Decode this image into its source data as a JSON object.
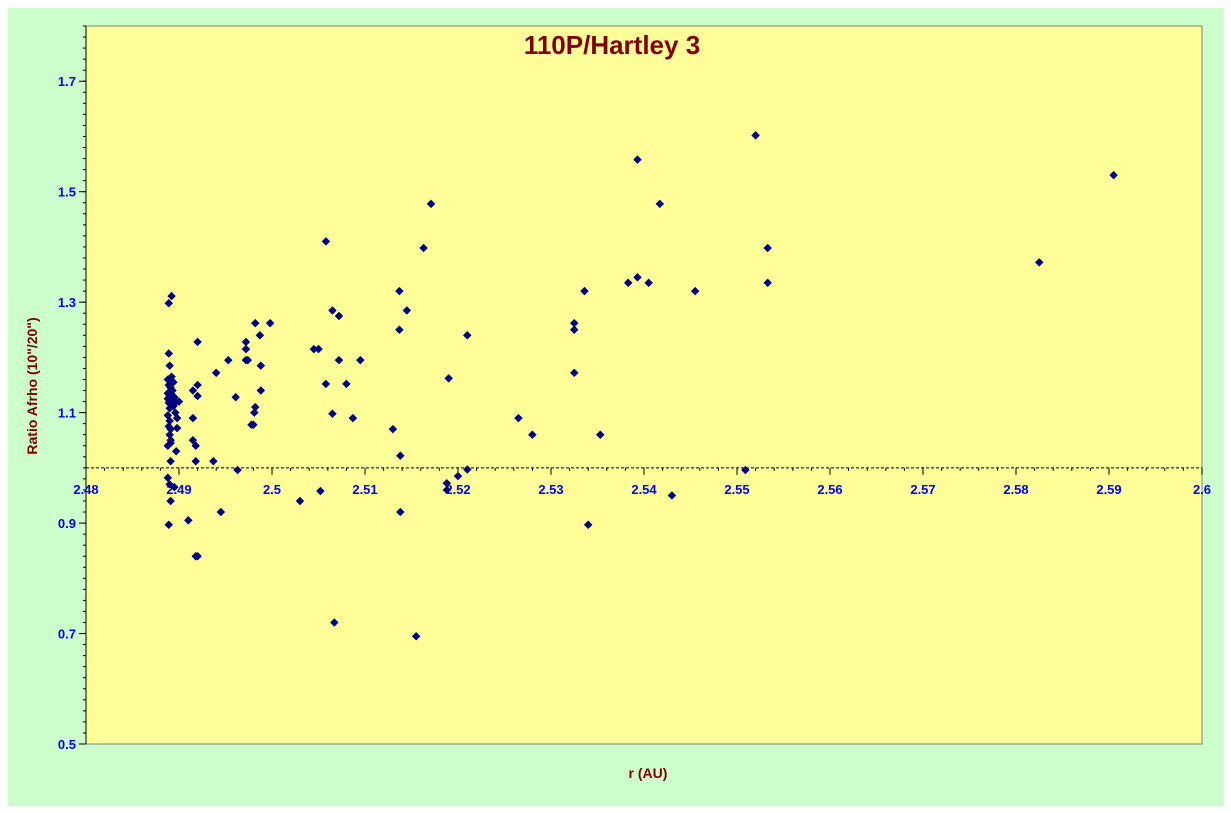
{
  "colors": {
    "outer_background": "#ccffcc",
    "plot_background": "#ffff99",
    "marker": "#000080",
    "title": "#800000",
    "tick_labels": "#0000ff"
  },
  "chart_data": {
    "type": "scatter",
    "title": "110P/Hartley 3",
    "xlabel": "r (AU)",
    "ylabel": "Ratio Afrho (10\"/20\")",
    "xlim": [
      2.48,
      2.6
    ],
    "ylim": [
      0.5,
      1.8
    ],
    "x_axis_crosses_y_at": 1.0,
    "x_ticks": [
      "2.48",
      "2.49",
      "2.5",
      "2.51",
      "2.52",
      "2.53",
      "2.54",
      "2.55",
      "2.56",
      "2.57",
      "2.58",
      "2.59",
      "2.6"
    ],
    "y_ticks": [
      "0.5",
      "0.7",
      "0.9",
      "1.1",
      "1.3",
      "1.5",
      "1.7"
    ],
    "grid": false,
    "legend": "none",
    "marker": "diamond",
    "points": [
      [
        2.4889,
        1.207
      ],
      [
        2.4889,
        1.298
      ],
      [
        2.4892,
        1.311
      ],
      [
        2.489,
        1.185
      ],
      [
        2.4888,
        1.16
      ],
      [
        2.4892,
        1.165
      ],
      [
        2.4894,
        1.155
      ],
      [
        2.4889,
        1.15
      ],
      [
        2.4891,
        1.145
      ],
      [
        2.4893,
        1.14
      ],
      [
        2.4888,
        1.135
      ],
      [
        2.489,
        1.13
      ],
      [
        2.4895,
        1.128
      ],
      [
        2.4888,
        1.125
      ],
      [
        2.4892,
        1.122
      ],
      [
        2.4897,
        1.12
      ],
      [
        2.4889,
        1.118
      ],
      [
        2.4892,
        1.115
      ],
      [
        2.4894,
        1.112
      ],
      [
        2.489,
        1.108
      ],
      [
        2.4896,
        1.1
      ],
      [
        2.4888,
        1.095
      ],
      [
        2.4898,
        1.09
      ],
      [
        2.489,
        1.085
      ],
      [
        2.4889,
        1.075
      ],
      [
        2.4891,
        1.07
      ],
      [
        2.489,
        1.06
      ],
      [
        2.4891,
        1.05
      ],
      [
        2.4888,
        1.04
      ],
      [
        2.4891,
        1.045
      ],
      [
        2.4897,
        1.03
      ],
      [
        2.4891,
        1.012
      ],
      [
        2.4888,
        0.982
      ],
      [
        2.489,
        0.97
      ],
      [
        2.4895,
        0.965
      ],
      [
        2.4891,
        0.94
      ],
      [
        2.4889,
        0.897
      ],
      [
        2.4898,
        1.072
      ],
      [
        2.49,
        1.12
      ],
      [
        2.491,
        0.905
      ],
      [
        2.4915,
        1.09
      ],
      [
        2.4915,
        1.14
      ],
      [
        2.4915,
        1.05
      ],
      [
        2.4918,
        1.012
      ],
      [
        2.492,
        1.15
      ],
      [
        2.492,
        1.13
      ],
      [
        2.492,
        1.228
      ],
      [
        2.4918,
        1.04
      ],
      [
        2.4918,
        0.84
      ],
      [
        2.492,
        0.84
      ],
      [
        2.4937,
        1.012
      ],
      [
        2.494,
        1.172
      ],
      [
        2.4945,
        0.92
      ],
      [
        2.4953,
        1.195
      ],
      [
        2.4961,
        1.128
      ],
      [
        2.4963,
        0.996
      ],
      [
        2.4972,
        1.228
      ],
      [
        2.4972,
        1.215
      ],
      [
        2.4972,
        1.195
      ],
      [
        2.4974,
        1.195
      ],
      [
        2.4978,
        1.078
      ],
      [
        2.498,
        1.078
      ],
      [
        2.4981,
        1.1
      ],
      [
        2.4982,
        1.11
      ],
      [
        2.4982,
        1.262
      ],
      [
        2.4987,
        1.24
      ],
      [
        2.4988,
        1.185
      ],
      [
        2.4988,
        1.14
      ],
      [
        2.4998,
        1.262
      ],
      [
        2.503,
        0.94
      ],
      [
        2.5045,
        1.215
      ],
      [
        2.505,
        1.215
      ],
      [
        2.5052,
        0.958
      ],
      [
        2.5058,
        1.41
      ],
      [
        2.5058,
        1.152
      ],
      [
        2.5065,
        1.285
      ],
      [
        2.5065,
        1.098
      ],
      [
        2.5067,
        0.72
      ],
      [
        2.5072,
        1.275
      ],
      [
        2.5072,
        1.195
      ],
      [
        2.508,
        1.152
      ],
      [
        2.5087,
        1.09
      ],
      [
        2.5095,
        1.195
      ],
      [
        2.513,
        1.07
      ],
      [
        2.5137,
        1.32
      ],
      [
        2.5137,
        1.25
      ],
      [
        2.5138,
        1.022
      ],
      [
        2.5138,
        0.92
      ],
      [
        2.5145,
        1.285
      ],
      [
        2.5155,
        0.695
      ],
      [
        2.5163,
        1.398
      ],
      [
        2.5171,
        1.478
      ],
      [
        2.5188,
        0.96
      ],
      [
        2.5188,
        0.972
      ],
      [
        2.519,
        1.162
      ],
      [
        2.52,
        0.985
      ],
      [
        2.521,
        0.997
      ],
      [
        2.521,
        1.24
      ],
      [
        2.5265,
        1.09
      ],
      [
        2.528,
        1.06
      ],
      [
        2.5325,
        1.262
      ],
      [
        2.5325,
        1.25
      ],
      [
        2.5325,
        1.172
      ],
      [
        2.5336,
        1.32
      ],
      [
        2.534,
        0.897
      ],
      [
        2.5353,
        1.06
      ],
      [
        2.5383,
        1.335
      ],
      [
        2.5393,
        1.558
      ],
      [
        2.5393,
        1.345
      ],
      [
        2.5405,
        1.335
      ],
      [
        2.5417,
        1.478
      ],
      [
        2.543,
        0.95
      ],
      [
        2.5455,
        1.32
      ],
      [
        2.5509,
        0.996
      ],
      [
        2.552,
        1.602
      ],
      [
        2.5533,
        1.398
      ],
      [
        2.5533,
        1.335
      ],
      [
        2.5825,
        1.372
      ],
      [
        2.5905,
        1.53
      ]
    ]
  }
}
